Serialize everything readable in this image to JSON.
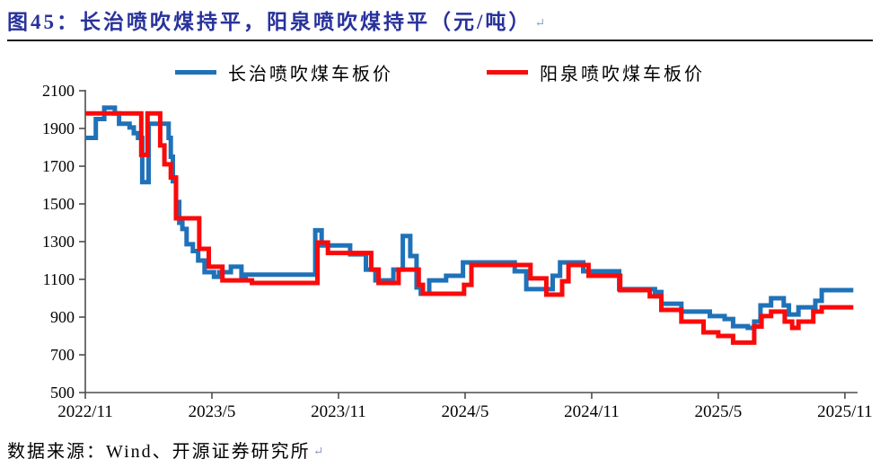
{
  "figure": {
    "title": "图45：长治喷吹煤持平，阳泉喷吹煤持平（元/吨）",
    "return_mark": "↵",
    "source_note": "数据来源：Wind、开源证券研究所"
  },
  "colors": {
    "title": "#28329B",
    "rule": "#141414",
    "axis": "#4d4d4d",
    "changzhi_blue": "#1F72B8",
    "yangquan_red": "#FA0A0A"
  },
  "chart_data": {
    "type": "line",
    "line_style": "step-after",
    "unit": "元/吨",
    "grid": false,
    "legend_position": "top-center",
    "x_axis": {
      "range_months": [
        0,
        36.6
      ],
      "tick_months": [
        0,
        6,
        12,
        18,
        24,
        30,
        36
      ],
      "tick_labels": [
        "2022/11",
        "2023/5",
        "2023/11",
        "2024/5",
        "2024/11",
        "2025/5",
        "2025/11"
      ]
    },
    "y_axis": {
      "min": 500,
      "max": 2100,
      "tick_step": 200,
      "ticks": [
        500,
        700,
        900,
        1100,
        1300,
        1500,
        1700,
        1900,
        2100
      ]
    },
    "series": [
      {
        "name": "长治喷吹煤车板价",
        "color": "#1F72B8",
        "points": [
          [
            0,
            1850
          ],
          [
            0.5,
            1950
          ],
          [
            0.9,
            2010
          ],
          [
            1.4,
            1980
          ],
          [
            1.6,
            1925
          ],
          [
            2.1,
            1905
          ],
          [
            2.3,
            1875
          ],
          [
            2.5,
            1850
          ],
          [
            2.7,
            1615
          ],
          [
            3.0,
            1925
          ],
          [
            3.95,
            1850
          ],
          [
            4.05,
            1750
          ],
          [
            4.15,
            1620
          ],
          [
            4.3,
            1510
          ],
          [
            4.45,
            1400
          ],
          [
            4.6,
            1367
          ],
          [
            4.8,
            1286
          ],
          [
            5.1,
            1250
          ],
          [
            5.35,
            1200
          ],
          [
            5.65,
            1138
          ],
          [
            6.1,
            1114
          ],
          [
            6.35,
            1138
          ],
          [
            6.9,
            1167
          ],
          [
            7.4,
            1114
          ],
          [
            7.6,
            1125
          ],
          [
            10.9,
            1360
          ],
          [
            11.2,
            1280
          ],
          [
            12.55,
            1233
          ],
          [
            13.3,
            1152
          ],
          [
            13.75,
            1095
          ],
          [
            14.6,
            1152
          ],
          [
            15.05,
            1330
          ],
          [
            15.4,
            1224
          ],
          [
            15.7,
            1057
          ],
          [
            15.9,
            1024
          ],
          [
            16.3,
            1095
          ],
          [
            17.1,
            1119
          ],
          [
            17.9,
            1190
          ],
          [
            20.35,
            1143
          ],
          [
            20.9,
            1048
          ],
          [
            22.15,
            1119
          ],
          [
            22.5,
            1190
          ],
          [
            23.6,
            1143
          ],
          [
            25.3,
            1048
          ],
          [
            27.0,
            1033
          ],
          [
            27.3,
            971
          ],
          [
            28.25,
            929
          ],
          [
            29.6,
            905
          ],
          [
            30.3,
            890
          ],
          [
            30.7,
            852
          ],
          [
            31.4,
            843
          ],
          [
            31.7,
            876
          ],
          [
            32.0,
            962
          ],
          [
            32.5,
            1000
          ],
          [
            33.1,
            962
          ],
          [
            33.35,
            914
          ],
          [
            33.8,
            952
          ],
          [
            34.6,
            986
          ],
          [
            34.9,
            1043
          ],
          [
            36.4,
            1043
          ]
        ]
      },
      {
        "name": "阳泉喷吹煤车板价",
        "color": "#FA0A0A",
        "points": [
          [
            0,
            1980
          ],
          [
            2.65,
            1760
          ],
          [
            2.95,
            1980
          ],
          [
            3.55,
            1810
          ],
          [
            3.75,
            1710
          ],
          [
            4.05,
            1640
          ],
          [
            4.3,
            1424
          ],
          [
            5.4,
            1262
          ],
          [
            5.85,
            1167
          ],
          [
            6.5,
            1095
          ],
          [
            7.9,
            1081
          ],
          [
            11.0,
            1295
          ],
          [
            11.5,
            1240
          ],
          [
            13.55,
            1152
          ],
          [
            13.9,
            1081
          ],
          [
            14.85,
            1152
          ],
          [
            15.8,
            1071
          ],
          [
            16.0,
            1024
          ],
          [
            17.95,
            1071
          ],
          [
            18.3,
            1176
          ],
          [
            21.1,
            1105
          ],
          [
            21.85,
            1019
          ],
          [
            22.6,
            1090
          ],
          [
            22.9,
            1176
          ],
          [
            23.85,
            1119
          ],
          [
            25.35,
            1043
          ],
          [
            26.75,
            1010
          ],
          [
            27.3,
            938
          ],
          [
            28.25,
            876
          ],
          [
            29.3,
            819
          ],
          [
            30.0,
            800
          ],
          [
            30.7,
            765
          ],
          [
            31.7,
            850
          ],
          [
            32.05,
            905
          ],
          [
            32.5,
            929
          ],
          [
            33.15,
            876
          ],
          [
            33.5,
            843
          ],
          [
            33.8,
            876
          ],
          [
            34.5,
            929
          ],
          [
            34.9,
            952
          ],
          [
            36.4,
            952
          ]
        ]
      }
    ]
  }
}
